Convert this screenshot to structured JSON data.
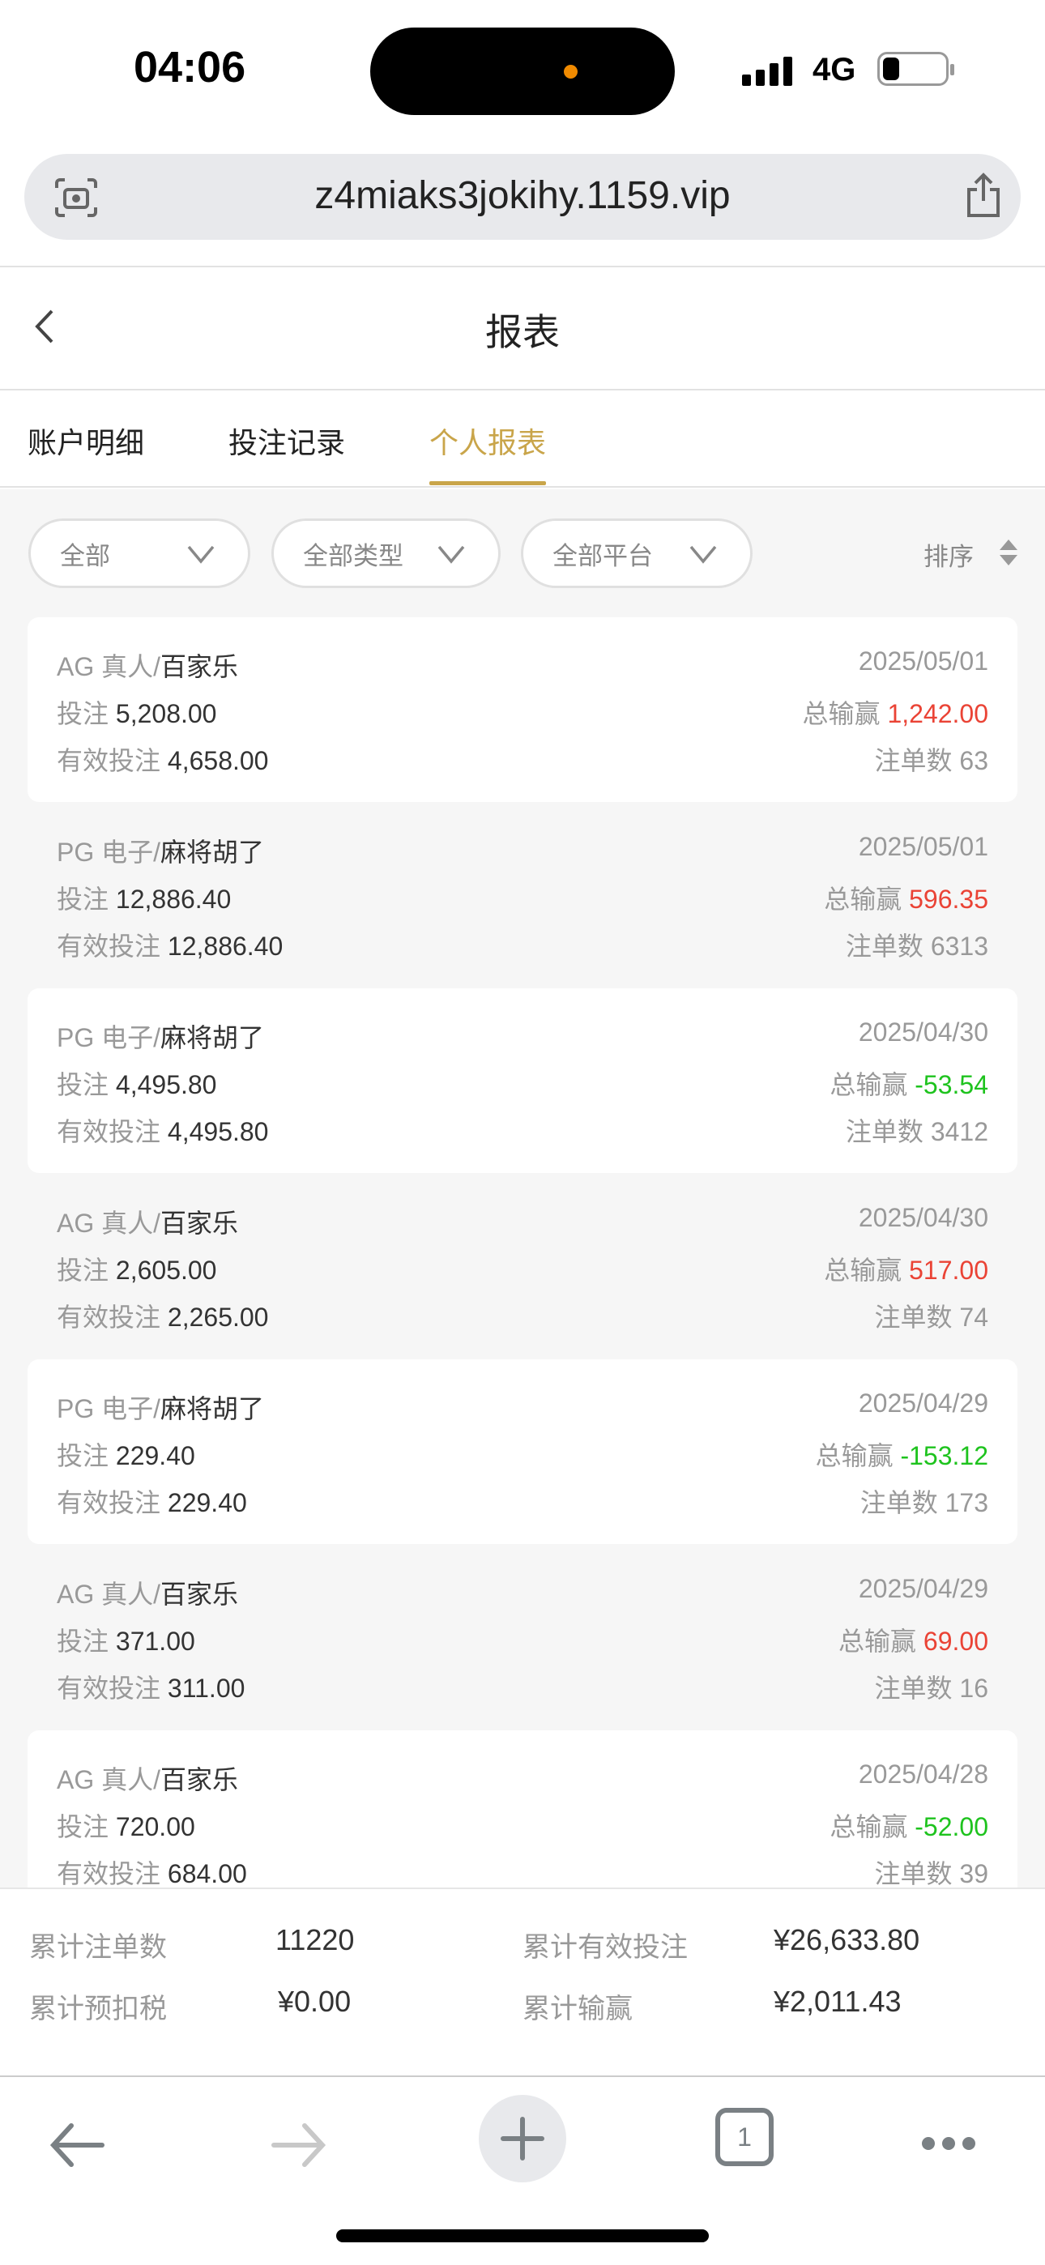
{
  "status": {
    "time": "04:06",
    "network": "4G"
  },
  "browser": {
    "url": "z4miaks3jokihy.1159.vip",
    "tab_count": "1"
  },
  "header": {
    "title": "报表"
  },
  "tabs": [
    {
      "label": "账户明细"
    },
    {
      "label": "投注记录"
    },
    {
      "label": "个人报表",
      "active": true
    }
  ],
  "filters": [
    {
      "label": "全部"
    },
    {
      "label": "全部类型"
    },
    {
      "label": "全部平台"
    }
  ],
  "sort_label": "排序",
  "labels": {
    "bet": "投注",
    "valid": "有效投注",
    "winloss": "总输赢",
    "orders": "注单数"
  },
  "records": [
    {
      "platform": "AG 真人/",
      "game": "百家乐",
      "date": "2025/05/01",
      "bet": "5,208.00",
      "valid": "4,658.00",
      "winloss": "1,242.00",
      "orders": "63",
      "sign": "positive"
    },
    {
      "platform": "PG 电子/",
      "game": "麻将胡了",
      "date": "2025/05/01",
      "bet": "12,886.40",
      "valid": "12,886.40",
      "winloss": "596.35",
      "orders": "6313",
      "sign": "positive"
    },
    {
      "platform": "PG 电子/",
      "game": "麻将胡了",
      "date": "2025/04/30",
      "bet": "4,495.80",
      "valid": "4,495.80",
      "winloss": "-53.54",
      "orders": "3412",
      "sign": "negative"
    },
    {
      "platform": "AG 真人/",
      "game": "百家乐",
      "date": "2025/04/30",
      "bet": "2,605.00",
      "valid": "2,265.00",
      "winloss": "517.00",
      "orders": "74",
      "sign": "positive"
    },
    {
      "platform": "PG 电子/",
      "game": "麻将胡了",
      "date": "2025/04/29",
      "bet": "229.40",
      "valid": "229.40",
      "winloss": "-153.12",
      "orders": "173",
      "sign": "negative"
    },
    {
      "platform": "AG 真人/",
      "game": "百家乐",
      "date": "2025/04/29",
      "bet": "371.00",
      "valid": "311.00",
      "winloss": "69.00",
      "orders": "16",
      "sign": "positive"
    },
    {
      "platform": "AG 真人/",
      "game": "百家乐",
      "date": "2025/04/28",
      "bet": "720.00",
      "valid": "684.00",
      "winloss": "-52.00",
      "orders": "39",
      "sign": "negative"
    }
  ],
  "summary": {
    "total_orders_label": "累计注单数",
    "total_orders": "11220",
    "total_valid_label": "累计有效投注",
    "total_valid": "¥26,633.80",
    "tax_label": "累计预扣税",
    "tax": "¥0.00",
    "total_winloss_label": "累计输赢",
    "total_winloss": "¥2,011.43"
  },
  "colors": {
    "accent": "#c9a54a",
    "positive": "#ea4335",
    "negative": "#1ec31e"
  }
}
